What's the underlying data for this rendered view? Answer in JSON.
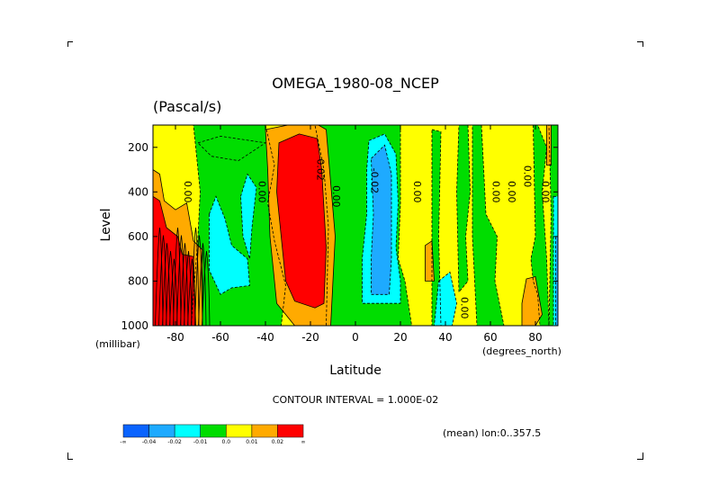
{
  "chart_data": {
    "type": "heatmap",
    "title": "OMEGA_1980-08_NCEP",
    "units": "(Pascal/s)",
    "xlabel": "Latitude",
    "ylabel": "Level",
    "x_unit_label": "(degrees_north)",
    "y_unit_label": "(millibar)",
    "xlim": [
      -90,
      90
    ],
    "ylim": [
      1000,
      100
    ],
    "x_ticks": [
      -80,
      -60,
      -40,
      -20,
      0,
      20,
      40,
      60,
      80
    ],
    "x_tick_labels": [
      "-80",
      "-60",
      "-40",
      "-20",
      "0",
      "20",
      "40",
      "60",
      "80"
    ],
    "y_ticks": [
      200,
      400,
      600,
      800,
      1000
    ],
    "y_tick_labels": [
      "200",
      "400",
      "600",
      "800",
      "1000"
    ],
    "contour_interval_label": "CONTOUR INTERVAL = 1.000E-02",
    "mean_label": "(mean) lon:0..357.5",
    "colorbar": {
      "bins": [
        {
          "color": "#0a64ff",
          "lower": null,
          "upper": -0.04
        },
        {
          "color": "#1eaaff",
          "lower": -0.04,
          "upper": -0.02
        },
        {
          "color": "#00ffff",
          "lower": -0.02,
          "upper": -0.01
        },
        {
          "color": "#00dd00",
          "lower": -0.01,
          "upper": 0.0
        },
        {
          "color": "#ffff00",
          "lower": 0.0,
          "upper": 0.01
        },
        {
          "color": "#ffaa00",
          "lower": 0.01,
          "upper": 0.02
        },
        {
          "color": "#ff0000",
          "lower": 0.02,
          "upper": null
        }
      ],
      "tick_labels": [
        "-∞",
        "-0.04",
        "-0.02",
        "-0.01",
        "0.0",
        "0.01",
        "0.02",
        "∞"
      ]
    },
    "contour_labels": [
      {
        "text": "0.00",
        "lat": -76,
        "level": 400
      },
      {
        "text": "0.00",
        "lat": -43,
        "level": 400
      },
      {
        "text": "0.02",
        "lat": -17,
        "level": 300
      },
      {
        "text": "0.00",
        "lat": -10,
        "level": 420
      },
      {
        "text": "-0.02",
        "lat": 7,
        "level": 350
      },
      {
        "text": "0.00",
        "lat": 26,
        "level": 400
      },
      {
        "text": "0.00",
        "lat": 61,
        "level": 400
      },
      {
        "text": "0.00",
        "lat": 68,
        "level": 400
      },
      {
        "text": "0.00",
        "lat": 75,
        "level": 330
      },
      {
        "text": "0.00",
        "lat": 83,
        "level": 400
      },
      {
        "text": "0.00",
        "lat": 47,
        "level": 920
      }
    ],
    "regions": [
      {
        "value": 0.005,
        "poly": [
          [
            -90,
            100
          ],
          [
            90,
            100
          ],
          [
            90,
            1000
          ],
          [
            -90,
            1000
          ]
        ]
      },
      {
        "value": -0.005,
        "poly": [
          [
            -72,
            100
          ],
          [
            -40,
            100
          ],
          [
            -36,
            280
          ],
          [
            -39,
            450
          ],
          [
            -36,
            620
          ],
          [
            -31,
            820
          ],
          [
            -33,
            1000
          ],
          [
            -73,
            1000
          ],
          [
            -70,
            600
          ],
          [
            -69,
            400
          ]
        ]
      },
      {
        "value": -0.005,
        "poly": [
          [
            -18,
            100
          ],
          [
            20,
            100
          ],
          [
            20,
            450
          ],
          [
            19,
            700
          ],
          [
            22,
            800
          ],
          [
            25,
            1000
          ],
          [
            -13,
            1000
          ],
          [
            -12,
            560
          ],
          [
            -14,
            300
          ]
        ]
      },
      {
        "value": -0.005,
        "poly": [
          [
            -70,
            180
          ],
          [
            -60,
            150
          ],
          [
            -40,
            180
          ],
          [
            -52,
            260
          ],
          [
            -64,
            240
          ]
        ]
      },
      {
        "value": -0.005,
        "poly": [
          [
            34,
            120
          ],
          [
            38,
            130
          ],
          [
            37,
            600
          ],
          [
            38,
            1000
          ],
          [
            34,
            1000
          ],
          [
            34,
            400
          ]
        ]
      },
      {
        "value": -0.005,
        "poly": [
          [
            46,
            100
          ],
          [
            50,
            100
          ],
          [
            51,
            400
          ],
          [
            49,
            600
          ],
          [
            50,
            800
          ],
          [
            46,
            850
          ],
          [
            45,
            400
          ]
        ]
      },
      {
        "value": -0.005,
        "poly": [
          [
            52,
            100
          ],
          [
            56,
            100
          ],
          [
            58,
            500
          ],
          [
            63,
            600
          ],
          [
            62,
            800
          ],
          [
            66,
            1000
          ],
          [
            54,
            1000
          ],
          [
            52,
            600
          ]
        ]
      },
      {
        "value": -0.005,
        "poly": [
          [
            77,
            100
          ],
          [
            79,
            100
          ],
          [
            80,
            600
          ],
          [
            78,
            700
          ],
          [
            79,
            800
          ],
          [
            81,
            860
          ],
          [
            82,
            1000
          ],
          [
            86,
            1000
          ],
          [
            85,
            700
          ],
          [
            83,
            400
          ],
          [
            85,
            200
          ],
          [
            81,
            100
          ]
        ]
      },
      {
        "value": -0.005,
        "poly": [
          [
            86,
            100
          ],
          [
            90,
            100
          ],
          [
            90,
            1000
          ],
          [
            86,
            1000
          ],
          [
            87,
            500
          ]
        ]
      },
      {
        "value": -0.015,
        "poly": [
          [
            -65,
            500
          ],
          [
            -62,
            420
          ],
          [
            -58,
            520
          ],
          [
            -55,
            640
          ],
          [
            -48,
            700
          ],
          [
            -47,
            820
          ],
          [
            -55,
            830
          ],
          [
            -60,
            860
          ],
          [
            -65,
            750
          ]
        ]
      },
      {
        "value": -0.015,
        "poly": [
          [
            -51,
            420
          ],
          [
            -48,
            320
          ],
          [
            -44,
            380
          ],
          [
            -46,
            560
          ],
          [
            -47,
            700
          ],
          [
            -50,
            600
          ]
        ]
      },
      {
        "value": -0.015,
        "poly": [
          [
            37,
            800
          ],
          [
            42,
            760
          ],
          [
            45,
            900
          ],
          [
            43,
            1000
          ],
          [
            35,
            1000
          ]
        ]
      },
      {
        "value": -0.015,
        "poly": [
          [
            88,
            420
          ],
          [
            90,
            420
          ],
          [
            90,
            1000
          ],
          [
            88,
            1000
          ]
        ]
      },
      {
        "value": -0.015,
        "poly": [
          [
            6,
            170
          ],
          [
            13,
            140
          ],
          [
            18,
            230
          ],
          [
            19,
            450
          ],
          [
            18,
            650
          ],
          [
            20,
            800
          ],
          [
            20,
            900
          ],
          [
            3,
            900
          ],
          [
            3,
            700
          ],
          [
            5,
            500
          ],
          [
            5,
            300
          ]
        ]
      },
      {
        "value": -0.03,
        "poly": [
          [
            7,
            250
          ],
          [
            13,
            190
          ],
          [
            16,
            320
          ],
          [
            16,
            700
          ],
          [
            15,
            860
          ],
          [
            7,
            860
          ],
          [
            7,
            700
          ],
          [
            8,
            500
          ]
        ]
      },
      {
        "value": -0.03,
        "poly": [
          [
            89,
            600
          ],
          [
            90,
            600
          ],
          [
            90,
            1000
          ],
          [
            89,
            1000
          ]
        ]
      },
      {
        "value": 0.015,
        "poly": [
          [
            -90,
            300
          ],
          [
            -87,
            320
          ],
          [
            -85,
            440
          ],
          [
            -80,
            480
          ],
          [
            -75,
            450
          ],
          [
            -72,
            620
          ],
          [
            -68,
            660
          ],
          [
            -68,
            1000
          ],
          [
            -90,
            1000
          ]
        ]
      },
      {
        "value": 0.015,
        "poly": [
          [
            -40,
            120
          ],
          [
            -20,
            80
          ],
          [
            -13,
            120
          ],
          [
            -9,
            600
          ],
          [
            -11,
            1000
          ],
          [
            -27,
            1000
          ],
          [
            -35,
            900
          ],
          [
            -38,
            600
          ],
          [
            -39,
            300
          ]
        ]
      },
      {
        "value": 0.015,
        "poly": [
          [
            31,
            640
          ],
          [
            34,
            620
          ],
          [
            35,
            800
          ],
          [
            31,
            800
          ]
        ]
      },
      {
        "value": 0.015,
        "poly": [
          [
            76,
            790
          ],
          [
            80,
            780
          ],
          [
            83,
            950
          ],
          [
            80,
            1000
          ],
          [
            74,
            1000
          ],
          [
            74,
            900
          ]
        ]
      },
      {
        "value": 0.015,
        "poly": [
          [
            85,
            100
          ],
          [
            87,
            100
          ],
          [
            87,
            280
          ],
          [
            85,
            280
          ]
        ]
      },
      {
        "value": 0.03,
        "poly": [
          [
            -34,
            180
          ],
          [
            -25,
            140
          ],
          [
            -17,
            160
          ],
          [
            -15,
            300
          ],
          [
            -13,
            650
          ],
          [
            -14,
            900
          ],
          [
            -18,
            920
          ],
          [
            -27,
            890
          ],
          [
            -31,
            800
          ],
          [
            -33,
            600
          ],
          [
            -35,
            400
          ]
        ]
      },
      {
        "value": 0.03,
        "poly": [
          [
            -90,
            420
          ],
          [
            -87,
            440
          ],
          [
            -84,
            560
          ],
          [
            -79,
            600
          ],
          [
            -77,
            680
          ],
          [
            -72,
            690
          ],
          [
            -71,
            1000
          ],
          [
            -90,
            1000
          ]
        ]
      }
    ]
  }
}
